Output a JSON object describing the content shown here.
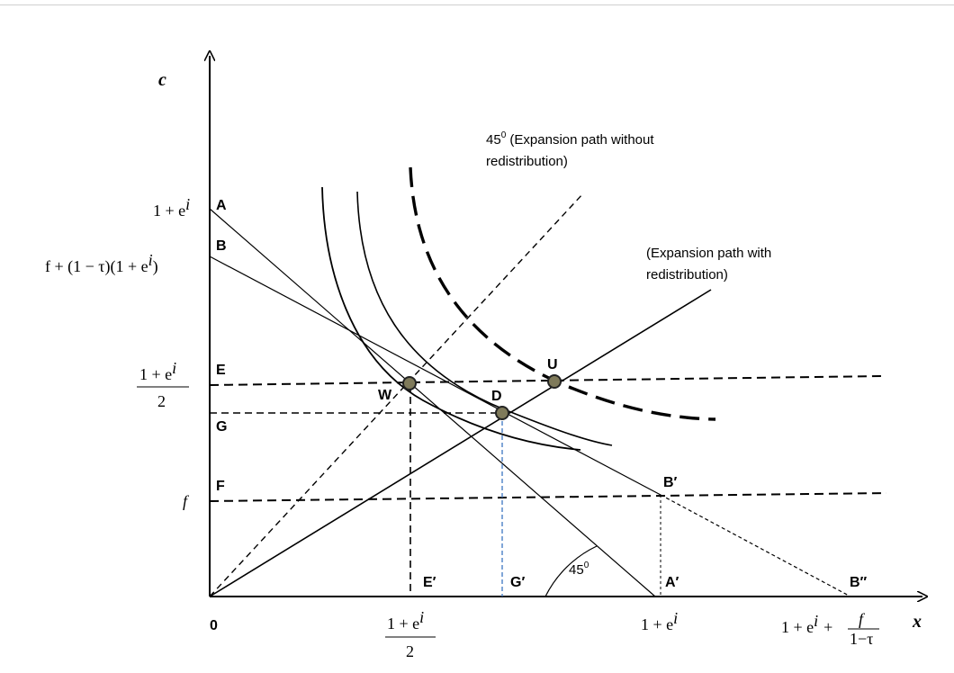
{
  "axes": {
    "x_name": "x",
    "y_name": "c",
    "origin": "0"
  },
  "y_ticks": {
    "one_plus_e": "1 + e",
    "one_plus_e_sup": "i",
    "f_tax": "f + (1 − τ)(1 + e",
    "f_tax_sup": "i",
    "f_tax_close": ")",
    "half_num": "1 + e",
    "half_num_sup": "i",
    "half_den": "2",
    "f": "f"
  },
  "x_ticks": {
    "half_num": "1 + e",
    "half_num_sup": "i",
    "half_den": "2",
    "one_plus_e": "1 + e",
    "one_plus_e_sup": "i",
    "far": "1 + e",
    "far_sup": "i",
    "far_plus": "+",
    "far_frac_num": "f",
    "far_frac_den": "1−τ"
  },
  "point_labels": {
    "A": "A",
    "B": "B",
    "E": "E",
    "G": "G",
    "F": "F",
    "W": "W",
    "D": "D",
    "U": "U",
    "B_prime": "B′",
    "A_prime": "A′",
    "B_double_prime": "B″",
    "E_prime": "E′",
    "G_prime": "G′"
  },
  "annotations": {
    "path_without_line1": "45",
    "path_without_sup": "0",
    "path_without_line1_rest": " (Expansion path without",
    "path_without_line2": "redistribution)",
    "path_with_line1": "(Expansion path with",
    "path_with_line2": "redistribution)",
    "angle": "45",
    "angle_sup": "0"
  },
  "colors": {
    "lines": "#000000",
    "marker_fill": "#7f7a5a",
    "marker_stroke": "#222222",
    "blue_dash": "#4a7fc6"
  }
}
